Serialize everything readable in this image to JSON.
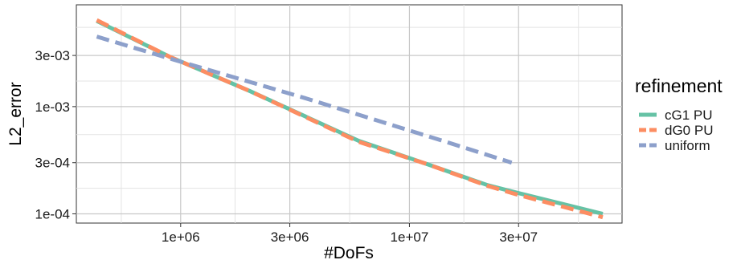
{
  "chart_data": {
    "type": "line",
    "xlabel": "#DoFs",
    "ylabel": "L2_error",
    "x_scale": "log10",
    "y_scale": "log10",
    "xlim": [
      350000,
      85000000
    ],
    "ylim": [
      8.2e-05,
      0.0089
    ],
    "x_ticks": [
      {
        "value": 1000000,
        "label": "1e+06"
      },
      {
        "value": 3000000,
        "label": "3e+06"
      },
      {
        "value": 10000000,
        "label": "1e+07"
      },
      {
        "value": 30000000,
        "label": "3e+07"
      }
    ],
    "x_minor_gridlines": [
      550000,
      1730000,
      5480000,
      17300000,
      54800000
    ],
    "y_ticks": [
      {
        "value": 0.0001,
        "label": "1e-04"
      },
      {
        "value": 0.0003,
        "label": "3e-04"
      },
      {
        "value": 0.001,
        "label": "1e-03"
      },
      {
        "value": 0.003,
        "label": "3e-03"
      }
    ],
    "y_minor_gridlines": [
      0.000173,
      0.000548,
      0.00173,
      0.00548
    ],
    "grid": true,
    "legend": {
      "title": "refinement",
      "position": "right"
    },
    "series": [
      {
        "name": "cG1 PU",
        "color": "#66C2A5",
        "dash": "solid",
        "x": [
          430000,
          900000,
          2000000,
          6000000,
          12000000,
          22000000,
          30000000,
          70000000
        ],
        "y": [
          0.0063,
          0.0029,
          0.0014,
          0.00048,
          0.00029,
          0.000185,
          0.000156,
          0.0001
        ]
      },
      {
        "name": "dG0 PU",
        "color": "#FC8D62",
        "dash": "dashed",
        "x": [
          430000,
          900000,
          2000000,
          6000000,
          12000000,
          22000000,
          30000000,
          70000000
        ],
        "y": [
          0.0064,
          0.0029,
          0.0014,
          0.00047,
          0.00029,
          0.000182,
          0.00015,
          9.3e-05
        ]
      },
      {
        "name": "uniform",
        "color": "#8DA0CB",
        "dash": "dashed",
        "x": [
          430000,
          900000,
          3500000,
          14000000,
          28000000
        ],
        "y": [
          0.0045,
          0.0028,
          0.0012,
          0.00048,
          0.0003
        ]
      }
    ]
  }
}
